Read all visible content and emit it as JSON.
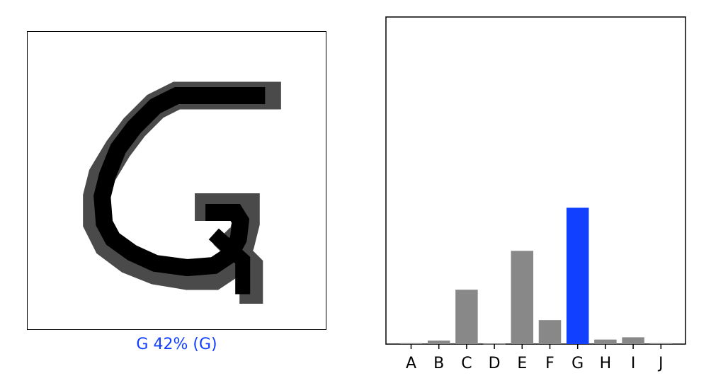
{
  "caption": {
    "text": "G 42% (G)",
    "color": "#1140ff"
  },
  "chart_data": {
    "type": "bar",
    "categories": [
      "A",
      "B",
      "C",
      "D",
      "E",
      "F",
      "G",
      "H",
      "I",
      "J"
    ],
    "values": [
      0.003,
      0.011,
      0.168,
      0.001,
      0.288,
      0.074,
      0.421,
      0.014,
      0.021,
      0.003
    ],
    "ylim": [
      0,
      1.01
    ],
    "colors": {
      "default": "#888888",
      "highlight": "#1140ff"
    },
    "highlight_index": 6,
    "grid": false,
    "legend": "none"
  }
}
